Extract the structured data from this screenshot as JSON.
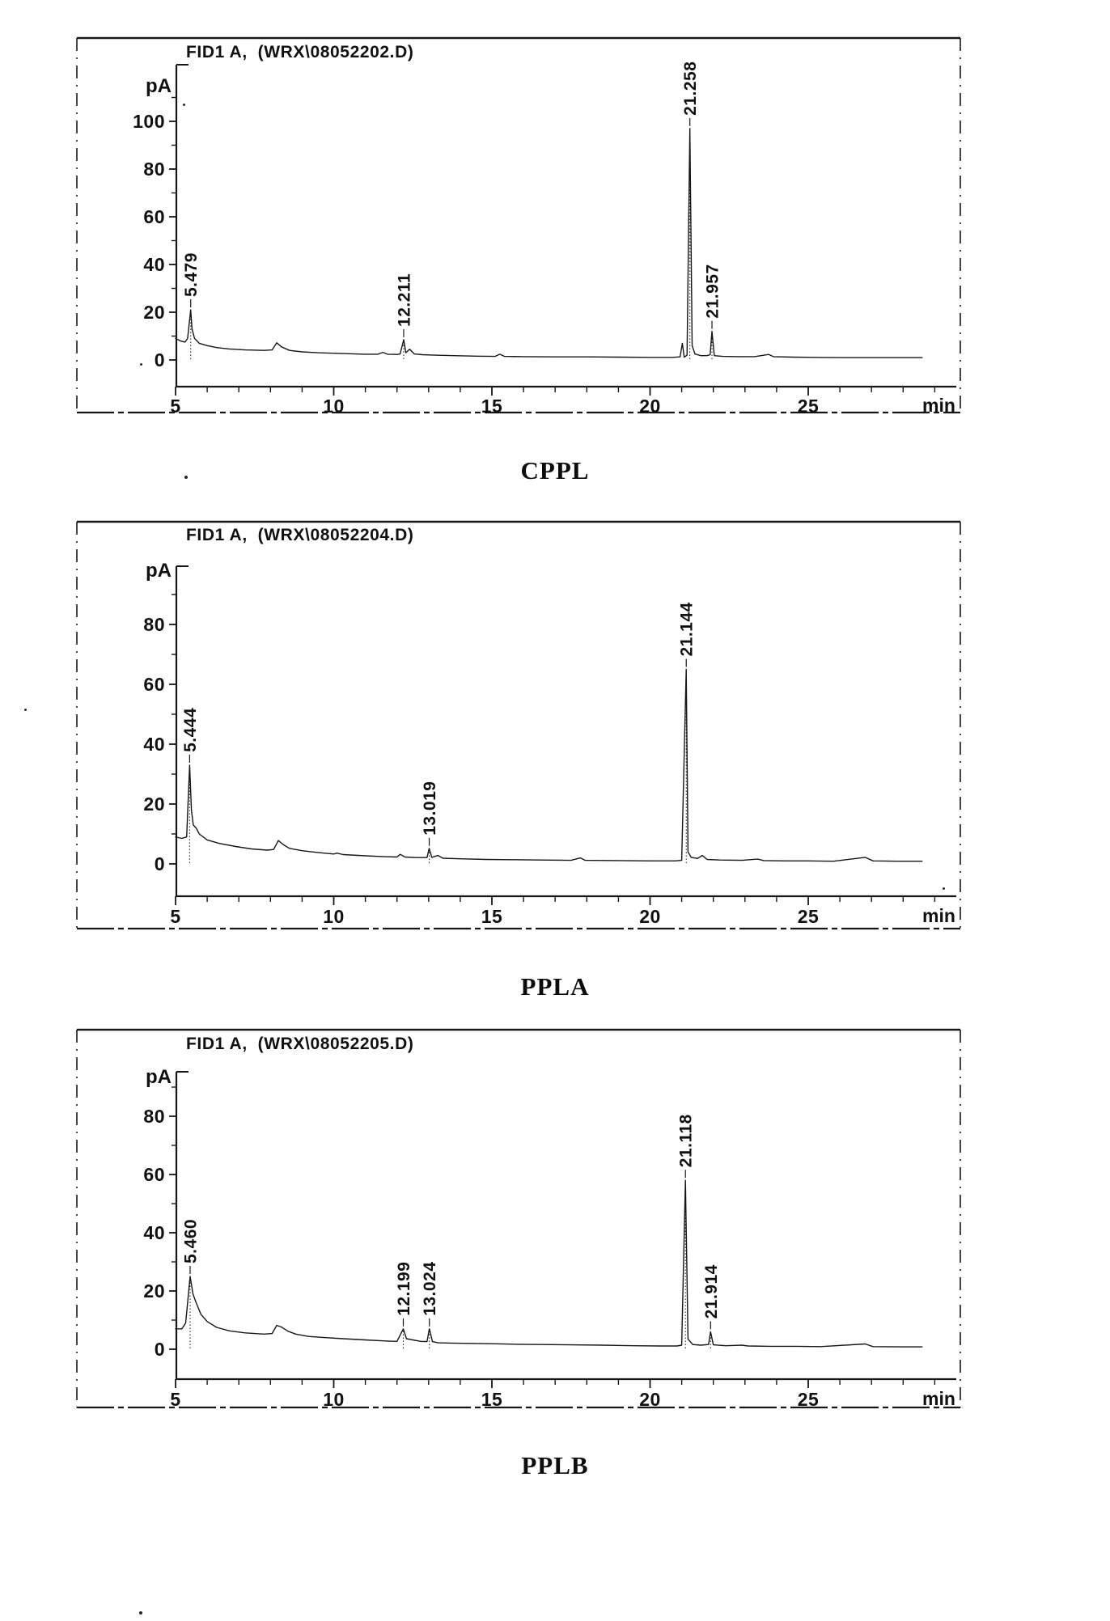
{
  "page": {
    "background": "#ffffff",
    "ink": "#141414"
  },
  "chart_data": [
    {
      "type": "line",
      "title": "CPPL",
      "header": "FID1 A,  (WRX\\08052202.D)",
      "ylabel": "pA",
      "xlabel": "min",
      "xlim": [
        5,
        28.6
      ],
      "xticks": [
        5,
        10,
        15,
        20,
        25
      ],
      "yticks": [
        0,
        20,
        40,
        60,
        80,
        100
      ],
      "grid": false,
      "peaks": [
        {
          "label": "5.479",
          "t": 5.479,
          "pA": 21
        },
        {
          "label": "12.211",
          "t": 12.211,
          "pA": 8.5
        },
        {
          "label": "21.258",
          "t": 21.258,
          "pA": 97
        },
        {
          "label": "21.957",
          "t": 21.957,
          "pA": 12
        }
      ],
      "trace": [
        [
          5.0,
          9
        ],
        [
          5.15,
          8
        ],
        [
          5.3,
          7.5
        ],
        [
          5.38,
          9
        ],
        [
          5.479,
          21
        ],
        [
          5.52,
          13
        ],
        [
          5.6,
          9
        ],
        [
          5.75,
          7
        ],
        [
          6.0,
          6
        ],
        [
          6.3,
          5.2
        ],
        [
          6.7,
          4.6
        ],
        [
          7.2,
          4.2
        ],
        [
          7.8,
          4.0
        ],
        [
          8.05,
          4.2
        ],
        [
          8.2,
          7.2
        ],
        [
          8.35,
          5.5
        ],
        [
          8.6,
          4.0
        ],
        [
          9.0,
          3.4
        ],
        [
          9.5,
          3.0
        ],
        [
          10.0,
          2.8
        ],
        [
          10.5,
          2.6
        ],
        [
          11.0,
          2.4
        ],
        [
          11.4,
          2.4
        ],
        [
          11.55,
          3.2
        ],
        [
          11.7,
          2.4
        ],
        [
          12.0,
          2.3
        ],
        [
          12.1,
          2.5
        ],
        [
          12.211,
          8.5
        ],
        [
          12.28,
          3.0
        ],
        [
          12.4,
          4.5
        ],
        [
          12.55,
          2.5
        ],
        [
          12.8,
          2.2
        ],
        [
          13.2,
          2.0
        ],
        [
          13.8,
          1.8
        ],
        [
          14.5,
          1.6
        ],
        [
          15.1,
          1.5
        ],
        [
          15.25,
          2.4
        ],
        [
          15.4,
          1.5
        ],
        [
          16.0,
          1.4
        ],
        [
          17.0,
          1.3
        ],
        [
          18.0,
          1.3
        ],
        [
          19.0,
          1.2
        ],
        [
          20.0,
          1.1
        ],
        [
          20.7,
          1.1
        ],
        [
          20.95,
          1.3
        ],
        [
          21.02,
          7
        ],
        [
          21.08,
          1.2
        ],
        [
          21.17,
          2.0
        ],
        [
          21.258,
          97
        ],
        [
          21.33,
          6
        ],
        [
          21.42,
          2.5
        ],
        [
          21.6,
          1.8
        ],
        [
          21.8,
          1.8
        ],
        [
          21.9,
          2.2
        ],
        [
          21.957,
          12
        ],
        [
          22.03,
          1.8
        ],
        [
          22.3,
          1.5
        ],
        [
          22.8,
          1.4
        ],
        [
          23.3,
          1.4
        ],
        [
          23.75,
          2.3
        ],
        [
          23.9,
          1.4
        ],
        [
          24.5,
          1.2
        ],
        [
          25.2,
          1.1
        ],
        [
          26.0,
          1.0
        ],
        [
          27.0,
          1.0
        ],
        [
          28.0,
          1.0
        ],
        [
          28.6,
          1.0
        ]
      ]
    },
    {
      "type": "line",
      "title": "PPLA",
      "header": "FID1 A,  (WRX\\08052204.D)",
      "ylabel": "pA",
      "xlabel": "min",
      "xlim": [
        5,
        28.6
      ],
      "xticks": [
        5,
        10,
        15,
        20,
        25
      ],
      "yticks": [
        0,
        20,
        40,
        60,
        80
      ],
      "grid": false,
      "peaks": [
        {
          "label": "5.444",
          "t": 5.444,
          "pA": 33
        },
        {
          "label": "13.019",
          "t": 13.019,
          "pA": 5.2
        },
        {
          "label": "21.144",
          "t": 21.144,
          "pA": 65
        }
      ],
      "trace": [
        [
          5.0,
          9
        ],
        [
          5.2,
          8.5
        ],
        [
          5.35,
          9
        ],
        [
          5.444,
          33
        ],
        [
          5.5,
          18
        ],
        [
          5.56,
          13
        ],
        [
          5.65,
          12
        ],
        [
          5.75,
          10
        ],
        [
          6.0,
          8
        ],
        [
          6.4,
          6.8
        ],
        [
          6.9,
          5.8
        ],
        [
          7.4,
          5.0
        ],
        [
          7.9,
          4.6
        ],
        [
          8.1,
          4.8
        ],
        [
          8.25,
          7.8
        ],
        [
          8.4,
          6.5
        ],
        [
          8.6,
          5.2
        ],
        [
          9.0,
          4.4
        ],
        [
          9.5,
          3.8
        ],
        [
          10.0,
          3.3
        ],
        [
          10.1,
          3.6
        ],
        [
          10.3,
          3.1
        ],
        [
          11.0,
          2.7
        ],
        [
          11.6,
          2.4
        ],
        [
          12.0,
          2.3
        ],
        [
          12.1,
          3.2
        ],
        [
          12.25,
          2.3
        ],
        [
          12.6,
          2.1
        ],
        [
          12.95,
          2.1
        ],
        [
          13.019,
          5.2
        ],
        [
          13.1,
          2.2
        ],
        [
          13.3,
          2.8
        ],
        [
          13.45,
          1.9
        ],
        [
          14.0,
          1.7
        ],
        [
          14.8,
          1.5
        ],
        [
          15.6,
          1.4
        ],
        [
          16.5,
          1.3
        ],
        [
          17.5,
          1.2
        ],
        [
          17.8,
          2.0
        ],
        [
          17.95,
          1.2
        ],
        [
          19.0,
          1.1
        ],
        [
          20.0,
          1.0
        ],
        [
          20.8,
          1.0
        ],
        [
          21.0,
          1.2
        ],
        [
          21.144,
          65
        ],
        [
          21.2,
          4
        ],
        [
          21.3,
          2.2
        ],
        [
          21.5,
          1.8
        ],
        [
          21.65,
          2.8
        ],
        [
          21.8,
          1.5
        ],
        [
          22.2,
          1.3
        ],
        [
          22.9,
          1.2
        ],
        [
          23.4,
          1.6
        ],
        [
          23.6,
          1.1
        ],
        [
          24.3,
          1.0
        ],
        [
          25.0,
          1.0
        ],
        [
          25.8,
          0.9
        ],
        [
          26.8,
          2.2
        ],
        [
          27.05,
          1.0
        ],
        [
          27.8,
          0.9
        ],
        [
          28.6,
          0.9
        ]
      ]
    },
    {
      "type": "line",
      "title": "PPLB",
      "header": "FID1 A,  (WRX\\08052205.D)",
      "ylabel": "pA",
      "xlabel": "min",
      "xlim": [
        5,
        28.6
      ],
      "xticks": [
        5,
        10,
        15,
        20,
        25
      ],
      "yticks": [
        0,
        20,
        40,
        60,
        80
      ],
      "grid": false,
      "peaks": [
        {
          "label": "5.460",
          "t": 5.46,
          "pA": 25
        },
        {
          "label": "12.199",
          "t": 12.199,
          "pA": 7
        },
        {
          "label": "13.024",
          "t": 13.024,
          "pA": 7
        },
        {
          "label": "21.118",
          "t": 21.118,
          "pA": 58
        },
        {
          "label": "21.914",
          "t": 21.914,
          "pA": 6
        }
      ],
      "trace": [
        [
          5.0,
          7
        ],
        [
          5.2,
          7
        ],
        [
          5.32,
          9
        ],
        [
          5.46,
          25
        ],
        [
          5.55,
          19
        ],
        [
          5.65,
          16
        ],
        [
          5.8,
          12
        ],
        [
          6.0,
          9.5
        ],
        [
          6.3,
          7.5
        ],
        [
          6.7,
          6.3
        ],
        [
          7.2,
          5.6
        ],
        [
          7.8,
          5.2
        ],
        [
          8.05,
          5.4
        ],
        [
          8.2,
          8.2
        ],
        [
          8.35,
          7.6
        ],
        [
          8.55,
          6.2
        ],
        [
          8.8,
          5.2
        ],
        [
          9.2,
          4.4
        ],
        [
          9.7,
          4.0
        ],
        [
          10.3,
          3.6
        ],
        [
          11.0,
          3.2
        ],
        [
          11.7,
          2.8
        ],
        [
          12.0,
          2.7
        ],
        [
          12.199,
          7
        ],
        [
          12.3,
          3.6
        ],
        [
          12.5,
          3.2
        ],
        [
          12.75,
          2.7
        ],
        [
          12.95,
          2.6
        ],
        [
          13.024,
          7
        ],
        [
          13.12,
          2.6
        ],
        [
          13.3,
          2.2
        ],
        [
          13.7,
          2.1
        ],
        [
          14.3,
          2.0
        ],
        [
          15.0,
          1.9
        ],
        [
          15.8,
          1.7
        ],
        [
          16.6,
          1.6
        ],
        [
          17.5,
          1.5
        ],
        [
          18.5,
          1.4
        ],
        [
          19.5,
          1.2
        ],
        [
          20.3,
          1.1
        ],
        [
          20.85,
          1.1
        ],
        [
          21.0,
          1.4
        ],
        [
          21.118,
          58
        ],
        [
          21.2,
          3.5
        ],
        [
          21.35,
          1.6
        ],
        [
          21.6,
          1.4
        ],
        [
          21.85,
          1.6
        ],
        [
          21.914,
          6
        ],
        [
          22.0,
          1.5
        ],
        [
          22.4,
          1.2
        ],
        [
          22.9,
          1.4
        ],
        [
          23.1,
          1.1
        ],
        [
          23.8,
          1.0
        ],
        [
          24.6,
          1.0
        ],
        [
          25.4,
          0.9
        ],
        [
          26.8,
          1.8
        ],
        [
          27.05,
          0.9
        ],
        [
          27.9,
          0.8
        ],
        [
          28.6,
          0.8
        ]
      ]
    }
  ]
}
